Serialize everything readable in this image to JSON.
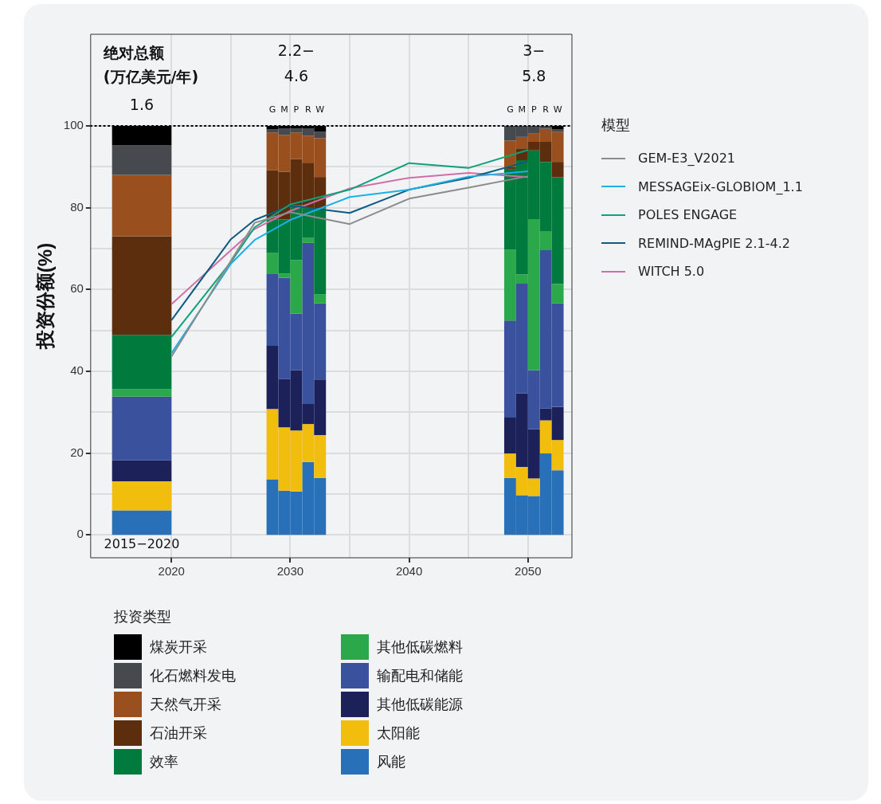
{
  "chart_data": {
    "type": "bar",
    "stacked": true,
    "ylabel": "投资份额(%)",
    "legend_title": "模型",
    "legend": "right",
    "grid": true,
    "xlim": [
      2013.2,
      2053.7
    ],
    "xticks": [
      2020,
      {
        "value": 2025,
        "label": null
      },
      2030,
      {
        "value": 2035,
        "label": null
      },
      2040,
      {
        "value": 2045,
        "label": null
      },
      2050
    ],
    "ylim": [
      -5.6,
      122.4
    ],
    "yticks": [
      0,
      {
        "value": 10,
        "label": null
      },
      20,
      {
        "value": 30,
        "label": null
      },
      40,
      {
        "value": 50,
        "label": null
      },
      60,
      {
        "value": 70,
        "label": null
      },
      80,
      {
        "value": 90,
        "label": null
      },
      100
    ],
    "ref_lines": [
      {
        "axis": "y",
        "value": 100,
        "line_style": "dotted",
        "color": "#000000"
      }
    ],
    "annotations": [
      "绝对总额\n(万亿美元/年)",
      "投资类型",
      "1.6",
      "2.2−\n4.6",
      "3−\n5.8",
      "G",
      "M",
      "P",
      "R",
      "W",
      "G",
      "M",
      "P",
      "R",
      "W",
      "2015−2020"
    ],
    "x": [
      2017.5,
      2028.5,
      2029.5,
      2030.5,
      2031.5,
      2032.5,
      2048.5,
      2049.5,
      2050.5,
      2051.5,
      2052.5
    ],
    "series": [
      {
        "name": "风能",
        "color": "#2870b8",
        "values": [
          6.0,
          13.6,
          10.8,
          10.6,
          17.8,
          13.9,
          13.9,
          9.7,
          9.5,
          19.9,
          15.8
        ]
      },
      {
        "name": "太阳能",
        "color": "#f1be0e",
        "values": [
          7.1,
          17.2,
          15.5,
          14.9,
          9.3,
          10.5,
          6.0,
          6.9,
          4.3,
          8.1,
          7.4
        ]
      },
      {
        "name": "其他低碳能源",
        "color": "#1c2259",
        "values": [
          5.1,
          15.4,
          11.8,
          14.8,
          4.9,
          13.6,
          8.8,
          18.0,
          12.0,
          2.9,
          8.1
        ]
      },
      {
        "name": "输配电和储能",
        "color": "#3a519d",
        "values": [
          15.6,
          17.7,
          24.8,
          13.8,
          39.4,
          18.6,
          23.7,
          26.8,
          14.5,
          38.7,
          25.3
        ]
      },
      {
        "name": "其他低碳燃料",
        "color": "#2aa84a",
        "values": [
          1.8,
          5.0,
          1.0,
          13.1,
          1.2,
          2.2,
          17.3,
          2.3,
          36.9,
          4.7,
          4.7
        ]
      },
      {
        "name": "效率",
        "color": "#007a3d",
        "values": [
          13.3,
          8.2,
          13.2,
          13.4,
          7.3,
          21.1,
          19.8,
          27.9,
          16.8,
          16.9,
          26.1
        ]
      },
      {
        "name": "石油开采",
        "color": "#5c2e0e",
        "values": [
          24.1,
          12.1,
          11.7,
          11.3,
          11.1,
          7.6,
          0.5,
          2.9,
          2.1,
          4.9,
          3.8
        ]
      },
      {
        "name": "天然气开采",
        "color": "#9a501e",
        "values": [
          15.0,
          9.2,
          9.0,
          6.5,
          6.6,
          9.5,
          6.4,
          2.8,
          2.0,
          3.2,
          7.3
        ]
      },
      {
        "name": "化石燃料发电",
        "color": "#464a4e",
        "values": [
          7.2,
          0.8,
          1.6,
          1.0,
          1.8,
          1.6,
          3.6,
          2.7,
          1.9,
          0.7,
          0.7
        ]
      },
      {
        "name": "煤炭开采",
        "color": "#000000",
        "values": [
          4.8,
          0.8,
          0.6,
          0.6,
          0.6,
          1.4,
          0,
          0,
          0,
          0,
          0.8
        ]
      },
      {
        "name": "GEM-E3_V2021",
        "type": "line",
        "color": "#8c8c8c",
        "x": [
          2020,
          2025,
          2027,
          2030,
          2035,
          2040,
          2045,
          2050
        ],
        "values": [
          43.6,
          67.0,
          76.3,
          78.9,
          76.0,
          82.2,
          84.9,
          87.7
        ]
      },
      {
        "name": "MESSAGEix-GLOBIOM_1.1",
        "type": "line",
        "color": "#1bb1e7",
        "x": [
          2020,
          2025,
          2027,
          2030,
          2035,
          2040,
          2045,
          2050
        ],
        "values": [
          44.4,
          66.3,
          72.1,
          77.0,
          82.6,
          84.4,
          87.6,
          88.9
        ]
      },
      {
        "name": "POLES ENGAGE",
        "type": "line",
        "color": "#0fa27a",
        "x": [
          2020,
          2025,
          2027,
          2030,
          2035,
          2040,
          2045,
          2050
        ],
        "values": [
          48.4,
          66.7,
          75.2,
          80.8,
          84.4,
          90.9,
          89.7,
          94.1
        ]
      },
      {
        "name": "REMIND-MAgPIE 2.1-4.2",
        "type": "line",
        "color": "#0d5a82",
        "x": [
          2020,
          2025,
          2027,
          2030,
          2035,
          2040,
          2045,
          2050
        ],
        "values": [
          52.5,
          72.3,
          77.0,
          80.5,
          78.7,
          84.4,
          87.3,
          91.3
        ]
      },
      {
        "name": "WITCH 5.0",
        "type": "line",
        "color": "#d06fa7",
        "x": [
          2020,
          2025,
          2027,
          2030,
          2035,
          2040,
          2045,
          2050
        ],
        "values": [
          56.4,
          69.6,
          74.8,
          79.2,
          84.7,
          87.3,
          88.5,
          87.5
        ]
      }
    ]
  }
}
